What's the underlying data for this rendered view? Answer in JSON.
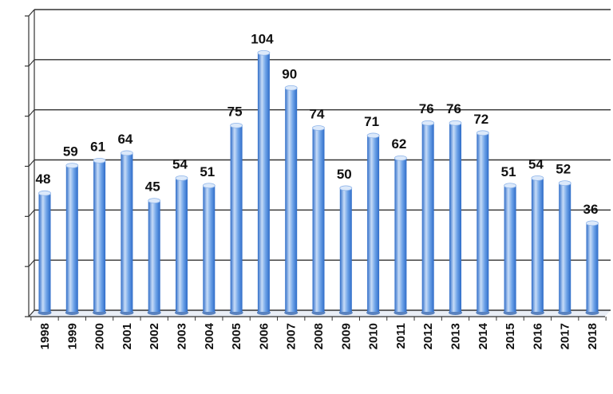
{
  "chart_data": {
    "type": "bar",
    "categories": [
      "1998",
      "1999",
      "2000",
      "2001",
      "2002",
      "2003",
      "2004",
      "2005",
      "2006",
      "2007",
      "2008",
      "2009",
      "2010",
      "2011",
      "2012",
      "2013",
      "2014",
      "2015",
      "2016",
      "2017",
      "2018"
    ],
    "series": [
      {
        "values": [
          48,
          59,
          61,
          64,
          45,
          54,
          51,
          75,
          104,
          90,
          74,
          50,
          71,
          62,
          76,
          76,
          72,
          51,
          54,
          52,
          36
        ]
      }
    ],
    "title": "",
    "xlabel": "",
    "ylabel": "",
    "ylim": [
      0,
      120
    ],
    "ytick_values": [
      0,
      20,
      40,
      60,
      80,
      100,
      120
    ],
    "ytick_labels_visible": false,
    "grid": true,
    "legend": "none",
    "data_labels": true,
    "three_d": true,
    "colors": {
      "bar_light": "#c7dcf7",
      "bar_mid": "#6ea3e8",
      "bar_dark": "#2e6cc8",
      "bar_top": "#dce9fa",
      "floor": "#3f6fb5",
      "gridline": "#333333",
      "back_wall": "#ffffff"
    }
  }
}
